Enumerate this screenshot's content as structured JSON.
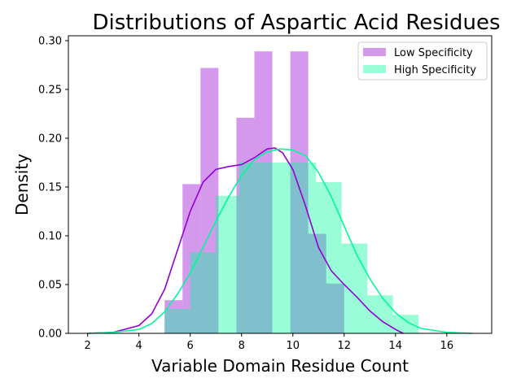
{
  "chart_data": {
    "type": "bar",
    "title": "Distributions of Aspartic Acid Residues",
    "xlabel": "Variable Domain Residue Count",
    "ylabel": "Density",
    "xlim": [
      1.25,
      17.75
    ],
    "ylim": [
      0,
      0.305
    ],
    "x_ticks": [
      2,
      4,
      6,
      8,
      10,
      12,
      14,
      16
    ],
    "y_ticks": [
      0.0,
      0.05,
      0.1,
      0.15,
      0.2,
      0.25,
      0.3
    ],
    "y_tick_labels": [
      "0.00",
      "0.05",
      "0.10",
      "0.15",
      "0.20",
      "0.25",
      "0.30"
    ],
    "grid": false,
    "legend_position": "top-right",
    "series": [
      {
        "name": "Low Specificity",
        "color": "#9400d3",
        "bins": [
          {
            "x0": 5.0,
            "x1": 5.7,
            "density": 0.034
          },
          {
            "x0": 5.7,
            "x1": 6.4,
            "density": 0.153
          },
          {
            "x0": 6.4,
            "x1": 7.1,
            "density": 0.272
          },
          {
            "x0": 7.1,
            "x1": 7.8,
            "density": 0.0
          },
          {
            "x0": 7.8,
            "x1": 8.5,
            "density": 0.221
          },
          {
            "x0": 8.5,
            "x1": 9.2,
            "density": 0.289
          },
          {
            "x0": 9.2,
            "x1": 9.9,
            "density": 0.0
          },
          {
            "x0": 9.9,
            "x1": 10.6,
            "density": 0.289
          },
          {
            "x0": 10.6,
            "x1": 11.3,
            "density": 0.102
          },
          {
            "x0": 11.3,
            "x1": 12.0,
            "density": 0.051
          }
        ],
        "kde": [
          [
            2.0,
            0.0
          ],
          [
            3.0,
            0.001
          ],
          [
            4.0,
            0.008
          ],
          [
            4.5,
            0.02
          ],
          [
            5.0,
            0.045
          ],
          [
            5.5,
            0.085
          ],
          [
            6.0,
            0.125
          ],
          [
            6.5,
            0.155
          ],
          [
            7.0,
            0.168
          ],
          [
            7.5,
            0.171
          ],
          [
            8.0,
            0.173
          ],
          [
            8.5,
            0.18
          ],
          [
            9.0,
            0.189
          ],
          [
            9.3,
            0.19
          ],
          [
            9.6,
            0.185
          ],
          [
            10.0,
            0.168
          ],
          [
            10.5,
            0.13
          ],
          [
            11.0,
            0.088
          ],
          [
            11.5,
            0.064
          ],
          [
            12.0,
            0.05
          ],
          [
            12.5,
            0.037
          ],
          [
            13.0,
            0.023
          ],
          [
            13.5,
            0.012
          ],
          [
            14.0,
            0.004
          ],
          [
            14.3,
            0.0
          ]
        ]
      },
      {
        "name": "High Specificity",
        "color": "#00fa9a",
        "bins": [
          {
            "x0": 5.0,
            "x1": 6.0,
            "density": 0.025
          },
          {
            "x0": 6.0,
            "x1": 7.0,
            "density": 0.083
          },
          {
            "x0": 7.0,
            "x1": 7.9,
            "density": 0.141
          },
          {
            "x0": 7.9,
            "x1": 8.9,
            "density": 0.175
          },
          {
            "x0": 8.9,
            "x1": 9.9,
            "density": 0.175
          },
          {
            "x0": 9.9,
            "x1": 10.9,
            "density": 0.175
          },
          {
            "x0": 10.9,
            "x1": 11.9,
            "density": 0.155
          },
          {
            "x0": 11.9,
            "x1": 12.9,
            "density": 0.092
          },
          {
            "x0": 12.9,
            "x1": 13.9,
            "density": 0.039
          },
          {
            "x0": 13.9,
            "x1": 14.9,
            "density": 0.019
          }
        ],
        "kde": [
          [
            2.0,
            0.0
          ],
          [
            3.0,
            0.001
          ],
          [
            4.0,
            0.004
          ],
          [
            4.5,
            0.01
          ],
          [
            5.0,
            0.022
          ],
          [
            5.5,
            0.04
          ],
          [
            6.0,
            0.062
          ],
          [
            6.5,
            0.088
          ],
          [
            7.0,
            0.115
          ],
          [
            7.5,
            0.14
          ],
          [
            8.0,
            0.162
          ],
          [
            8.5,
            0.178
          ],
          [
            9.0,
            0.186
          ],
          [
            9.5,
            0.189
          ],
          [
            10.0,
            0.188
          ],
          [
            10.5,
            0.182
          ],
          [
            11.0,
            0.165
          ],
          [
            11.5,
            0.14
          ],
          [
            12.0,
            0.11
          ],
          [
            12.5,
            0.08
          ],
          [
            13.0,
            0.056
          ],
          [
            13.5,
            0.036
          ],
          [
            14.0,
            0.021
          ],
          [
            14.5,
            0.011
          ],
          [
            15.0,
            0.005
          ],
          [
            16.0,
            0.001
          ],
          [
            17.0,
            0.0
          ]
        ]
      }
    ]
  }
}
